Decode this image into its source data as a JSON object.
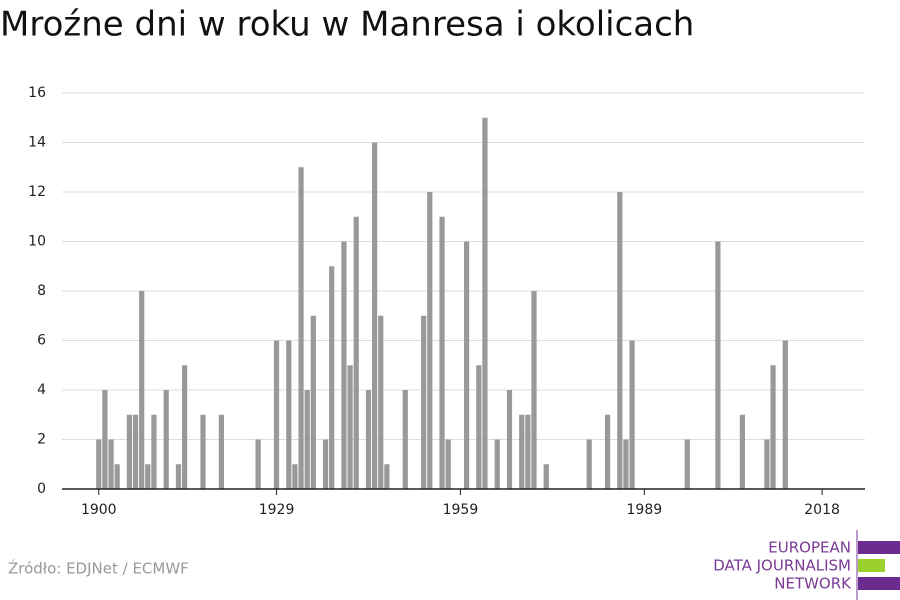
{
  "chart_data": {
    "type": "bar",
    "title": "Mroźne dni w roku w Manresa i okolicach",
    "x": [
      1900,
      1901,
      1902,
      1903,
      1905,
      1906,
      1907,
      1908,
      1909,
      1911,
      1913,
      1914,
      1917,
      1920,
      1926,
      1929,
      1931,
      1932,
      1933,
      1934,
      1935,
      1937,
      1938,
      1940,
      1941,
      1942,
      1944,
      1945,
      1946,
      1947,
      1950,
      1953,
      1954,
      1956,
      1957,
      1960,
      1962,
      1963,
      1965,
      1967,
      1969,
      1970,
      1971,
      1973,
      1980,
      1983,
      1985,
      1986,
      1987,
      1996,
      2001,
      2005,
      2009,
      2010,
      2012
    ],
    "values": [
      2,
      4,
      2,
      1,
      3,
      3,
      8,
      1,
      3,
      4,
      1,
      5,
      3,
      3,
      2,
      6,
      6,
      1,
      13,
      4,
      7,
      2,
      9,
      10,
      5,
      11,
      4,
      14,
      7,
      1,
      4,
      7,
      12,
      11,
      2,
      10,
      5,
      15,
      2,
      4,
      3,
      3,
      8,
      1,
      2,
      3,
      12,
      2,
      6,
      2,
      10,
      3,
      2,
      5,
      6
    ],
    "color": "#999999",
    "xlim": [
      1894,
      2025
    ],
    "xticks": [
      1900,
      1929,
      1959,
      1989,
      2018
    ],
    "ylim": [
      0,
      16
    ],
    "yticks": [
      0,
      2,
      4,
      6,
      8,
      10,
      12,
      14,
      16
    ],
    "grid": true
  },
  "footer": {
    "source": "Źródło: EDJNet / ECMWF",
    "logo": [
      "EUROPEAN",
      "DATA JOURNALISM",
      "NETWORK"
    ]
  }
}
